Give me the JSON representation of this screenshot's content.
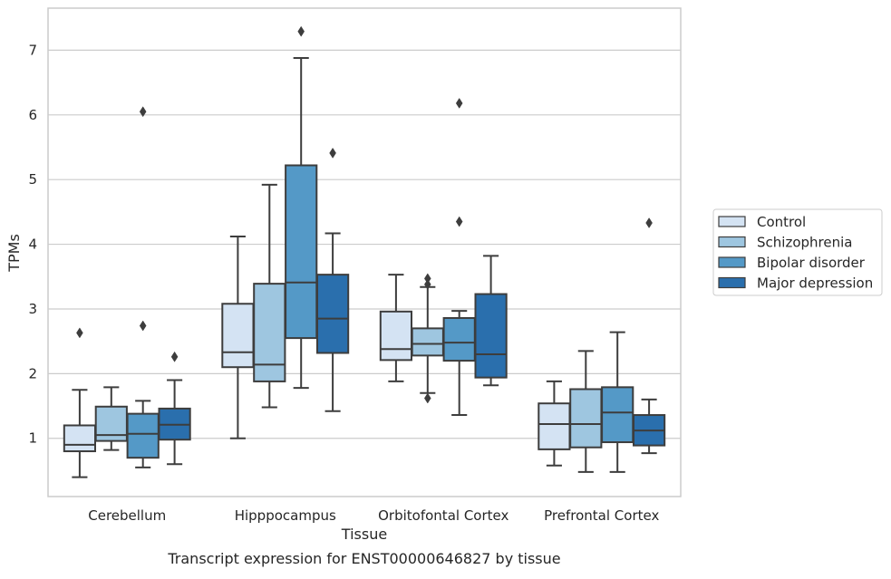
{
  "chart_data": {
    "type": "box",
    "xlabel": "Tissue",
    "ylabel": "TPMs",
    "caption": "Transcript expression for ENST00000646827 by tissue",
    "ylim": [
      0.1,
      7.65
    ],
    "yticks": [
      1,
      2,
      3,
      4,
      5,
      6,
      7
    ],
    "grid": "horizontal",
    "legend_placement": "right",
    "categories": [
      "Cerebellum",
      "Hipppocampus",
      "Orbitofontal Cortex",
      "Prefrontal Cortex"
    ],
    "series": [
      {
        "name": "Control",
        "color": "#d4e3f3",
        "boxes": [
          {
            "whislo": 0.4,
            "q1": 0.8,
            "med": 0.9,
            "q3": 1.2,
            "whishi": 1.75,
            "fliers": [
              2.63
            ]
          },
          {
            "whislo": 1.0,
            "q1": 2.1,
            "med": 2.33,
            "q3": 3.08,
            "whishi": 4.12,
            "fliers": []
          },
          {
            "whislo": 1.88,
            "q1": 2.21,
            "med": 2.38,
            "q3": 2.96,
            "whishi": 3.53,
            "fliers": []
          },
          {
            "whislo": 0.58,
            "q1": 0.83,
            "med": 1.22,
            "q3": 1.54,
            "whishi": 1.88,
            "fliers": []
          }
        ]
      },
      {
        "name": "Schizophrenia",
        "color": "#9ec6e0",
        "boxes": [
          {
            "whislo": 0.82,
            "q1": 0.96,
            "med": 1.05,
            "q3": 1.49,
            "whishi": 1.79,
            "fliers": []
          },
          {
            "whislo": 1.48,
            "q1": 1.88,
            "med": 2.14,
            "q3": 3.39,
            "whishi": 4.92,
            "fliers": []
          },
          {
            "whislo": 1.7,
            "q1": 2.28,
            "med": 2.46,
            "q3": 2.7,
            "whishi": 3.34,
            "fliers": [
              3.47,
              3.38,
              1.62
            ]
          },
          {
            "whislo": 0.48,
            "q1": 0.86,
            "med": 1.22,
            "q3": 1.76,
            "whishi": 2.35,
            "fliers": []
          }
        ]
      },
      {
        "name": "Bipolar disorder",
        "color": "#5499c7",
        "boxes": [
          {
            "whislo": 0.55,
            "q1": 0.7,
            "med": 1.07,
            "q3": 1.38,
            "whishi": 1.58,
            "fliers": [
              6.05,
              2.74
            ]
          },
          {
            "whislo": 1.78,
            "q1": 2.55,
            "med": 3.41,
            "q3": 5.22,
            "whishi": 6.88,
            "fliers": [
              7.29
            ]
          },
          {
            "whislo": 1.36,
            "q1": 2.2,
            "med": 2.48,
            "q3": 2.86,
            "whishi": 2.97,
            "fliers": [
              6.18,
              4.35
            ]
          },
          {
            "whislo": 0.48,
            "q1": 0.94,
            "med": 1.4,
            "q3": 1.79,
            "whishi": 2.64,
            "fliers": []
          }
        ]
      },
      {
        "name": "Major depression",
        "color": "#2a6fad",
        "boxes": [
          {
            "whislo": 0.6,
            "q1": 0.98,
            "med": 1.21,
            "q3": 1.46,
            "whishi": 1.9,
            "fliers": [
              2.26
            ]
          },
          {
            "whislo": 1.42,
            "q1": 2.32,
            "med": 2.85,
            "q3": 3.53,
            "whishi": 4.17,
            "fliers": [
              5.41
            ]
          },
          {
            "whislo": 1.82,
            "q1": 1.94,
            "med": 2.3,
            "q3": 3.23,
            "whishi": 3.82,
            "fliers": []
          },
          {
            "whislo": 0.77,
            "q1": 0.89,
            "med": 1.12,
            "q3": 1.36,
            "whishi": 1.6,
            "fliers": [
              4.33
            ]
          }
        ]
      }
    ]
  }
}
